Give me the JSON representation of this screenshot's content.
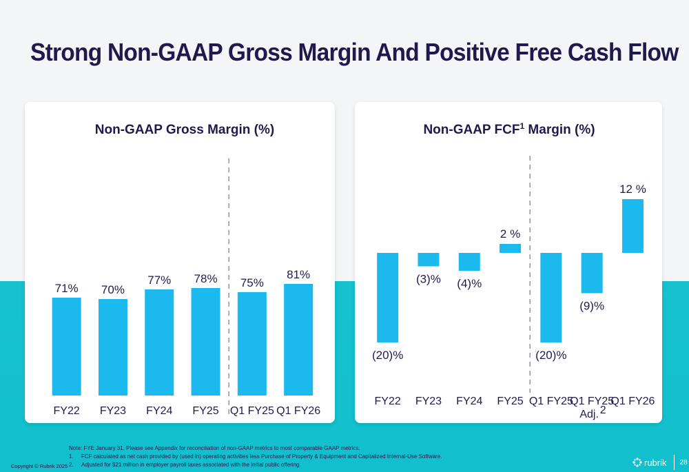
{
  "title": "Strong Non-GAAP Gross Margin And Positive Free Cash Flow",
  "colors": {
    "bar": "#1cb9ef",
    "title": "#1f1a4d",
    "band": "#16c2d0"
  },
  "chart_data": [
    {
      "type": "bar",
      "title": "Non-GAAP Gross Margin (%)",
      "categories": [
        "FY22",
        "FY23",
        "FY24",
        "FY25",
        "Q1 FY25",
        "Q1 FY26"
      ],
      "values": [
        71,
        70,
        77,
        78,
        75,
        81
      ],
      "value_labels": [
        "71%",
        "70%",
        "77%",
        "78%",
        "75%",
        "81%"
      ],
      "ylim": [
        0,
        100
      ],
      "divider_after_category_index": 3,
      "grid": false
    },
    {
      "type": "bar",
      "title": "Non-GAAP FCF",
      "title_superscript": "1",
      "title_suffix": " Margin (%)",
      "categories": [
        "FY22",
        "FY23",
        "FY24",
        "FY25",
        "Q1 FY25",
        "Q1 FY25",
        "Q1 FY26"
      ],
      "category_sublabels": [
        "",
        "",
        "",
        "",
        "",
        "Adj.",
        ""
      ],
      "category_superscripts": [
        "",
        "",
        "",
        "",
        "",
        "2",
        ""
      ],
      "values": [
        -20,
        -3,
        -4,
        2,
        -20,
        -9,
        12
      ],
      "value_labels": [
        "(20)%",
        "(3)%",
        "(4)%",
        "2 %",
        "(20)%",
        "(9)%",
        "12 %"
      ],
      "ylim": [
        -25,
        15
      ],
      "divider_after_category_index": 3,
      "grid": false
    }
  ],
  "notes": {
    "intro": "Note: FYE January 31. Please see Appendix for reconciliation of non-GAAP metrics to most comparable GAAP metrics.",
    "items": [
      {
        "num": "1.",
        "text": "FCF calculated as net cash provided by (used in) operating activities less Purchase of Property & Equipment and Capitalized Internal-Use Software."
      },
      {
        "num": "2.",
        "text": "Adjusted for $21 million in employer payroll taxes associated with the initial public offering."
      }
    ]
  },
  "footer": {
    "copyright": "Copyright © Rubrik 2025",
    "brand": "rubrik",
    "page": "28"
  }
}
